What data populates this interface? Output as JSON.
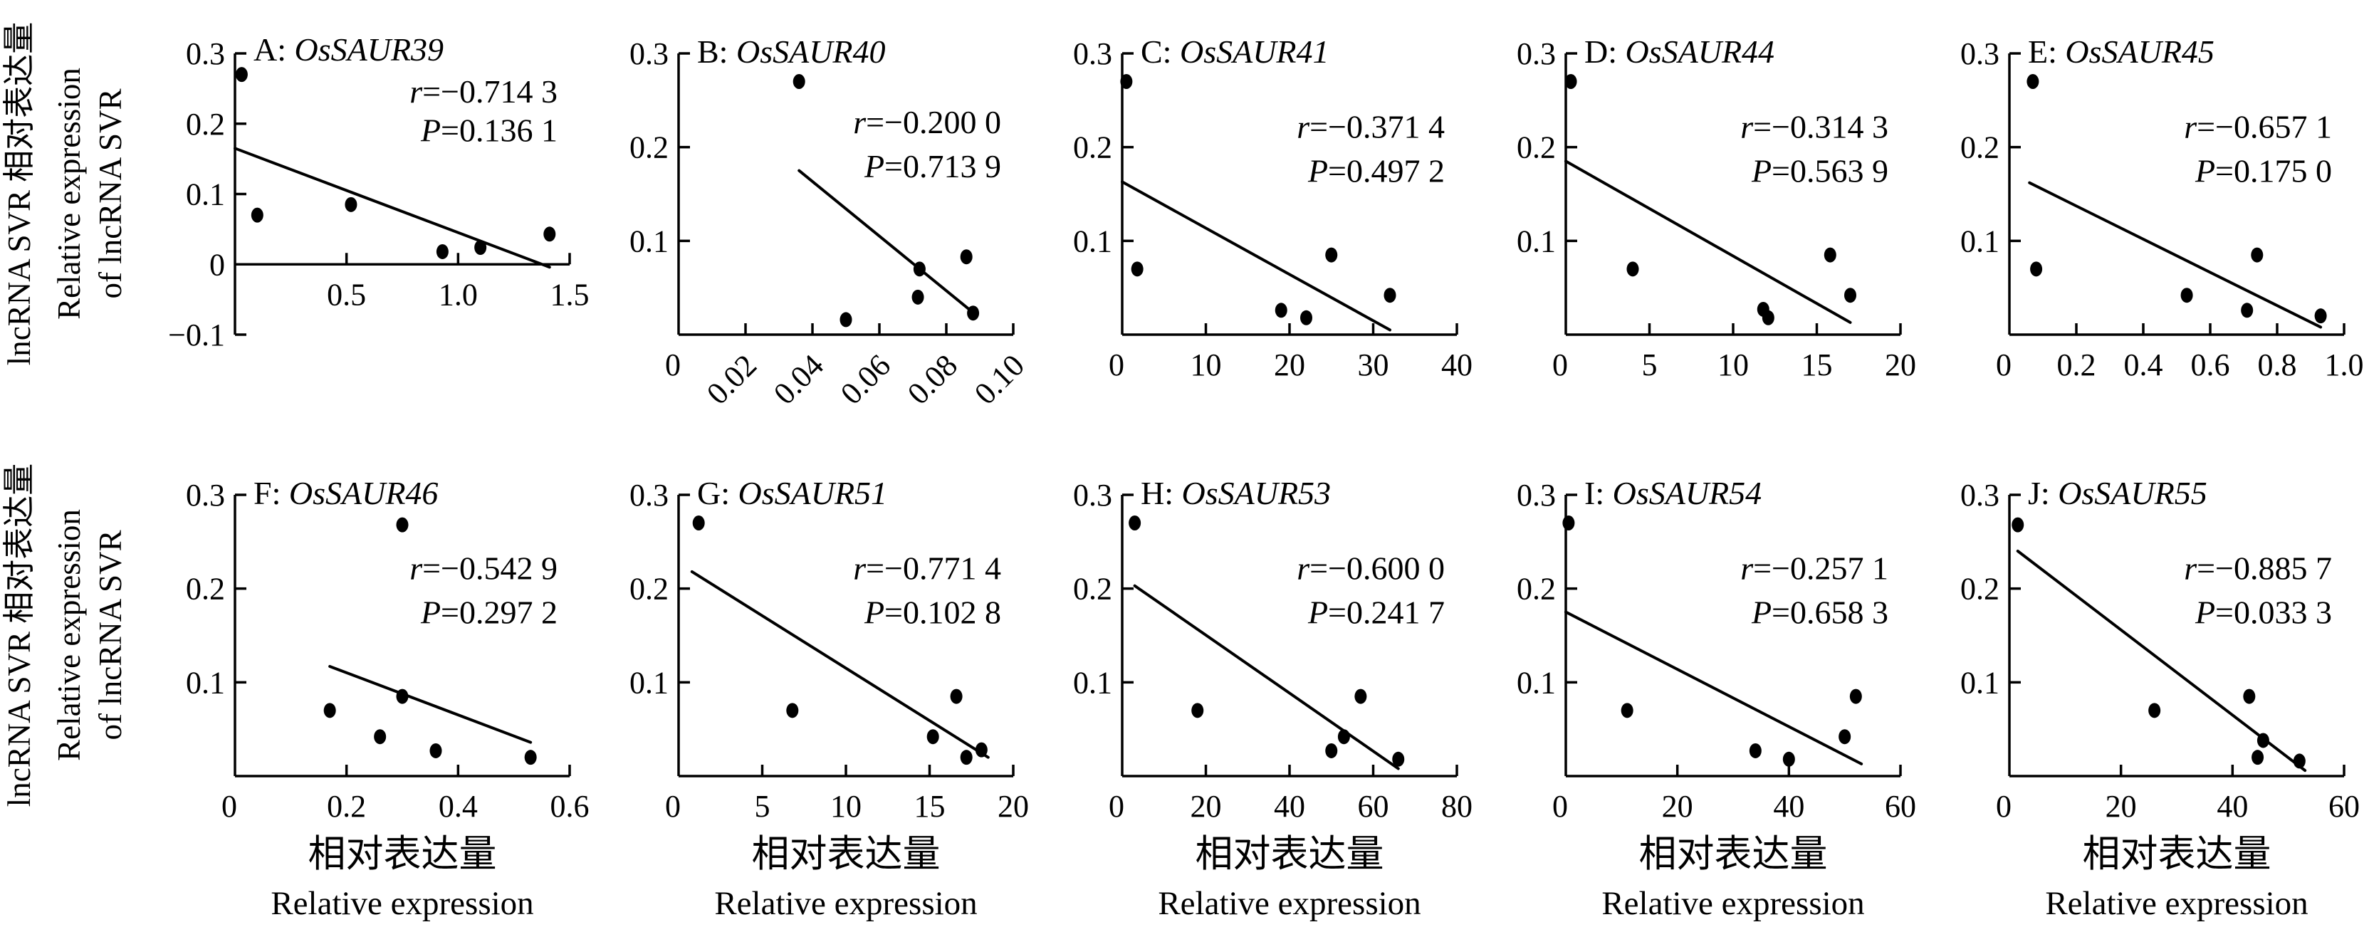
{
  "figure": {
    "ylabel_line1": "lncRNA SVR 相对表达量",
    "ylabel_line2": "Relative expression",
    "ylabel_line3": "of lncRNA SVR",
    "xlabel_cn": "相对表达量",
    "xlabel_en": "Relative expression",
    "text_color": "#000000",
    "background": "#ffffff",
    "marker_color": "#000000"
  },
  "chart_data": [
    {
      "type": "scatter",
      "panel": "A",
      "gene": "OsSAUR39",
      "r_value": "−0.714 3",
      "p_value": "0.136 1",
      "xlim": [
        0,
        1.5
      ],
      "ylim": [
        -0.1,
        0.3
      ],
      "xticks": [
        {
          "v": 0.5,
          "label": "0.5"
        },
        {
          "v": 1.0,
          "label": "1.0"
        },
        {
          "v": 1.5,
          "label": "1.5"
        }
      ],
      "yticks": [
        {
          "v": 0.3,
          "label": "0.3"
        },
        {
          "v": 0.2,
          "label": "0.2"
        },
        {
          "v": 0.1,
          "label": "0.1"
        },
        {
          "v": 0,
          "label": "0"
        },
        {
          "v": -0.1,
          "label": "−0.1"
        }
      ],
      "origin_label": null,
      "rotate_xticks": false,
      "axis_at_zero": true,
      "points": [
        [
          0.03,
          0.27
        ],
        [
          0.1,
          0.07
        ],
        [
          0.52,
          0.085
        ],
        [
          0.93,
          0.018
        ],
        [
          1.1,
          0.024
        ],
        [
          1.41,
          0.043
        ]
      ],
      "regression_line": {
        "x1": 0,
        "y1": 0.165,
        "x2": 1.41,
        "y2": -0.004
      },
      "r_y": 0.23,
      "p_y": 0.175
    },
    {
      "type": "scatter",
      "panel": "B",
      "gene": "OsSAUR40",
      "r_value": "−0.200 0",
      "p_value": "0.713 9",
      "xlim": [
        0,
        0.1
      ],
      "ylim": [
        0,
        0.3
      ],
      "xticks": [
        {
          "v": 0.02,
          "label": "0.02"
        },
        {
          "v": 0.04,
          "label": "0.04"
        },
        {
          "v": 0.06,
          "label": "0.06"
        },
        {
          "v": 0.08,
          "label": "0.08"
        },
        {
          "v": 0.1,
          "label": "0.10"
        }
      ],
      "yticks": [
        {
          "v": 0.3,
          "label": "0.3"
        },
        {
          "v": 0.2,
          "label": "0.2"
        },
        {
          "v": 0.1,
          "label": "0.1"
        }
      ],
      "origin_label": "0",
      "rotate_xticks": true,
      "axis_at_zero": false,
      "points": [
        [
          0.036,
          0.27
        ],
        [
          0.05,
          0.016
        ],
        [
          0.072,
          0.07
        ],
        [
          0.0715,
          0.04
        ],
        [
          0.086,
          0.083
        ],
        [
          0.088,
          0.023
        ]
      ],
      "regression_line": {
        "x1": 0.036,
        "y1": 0.175,
        "x2": 0.0875,
        "y2": 0.025
      },
      "r_y": 0.215,
      "p_y": 0.168
    },
    {
      "type": "scatter",
      "panel": "C",
      "gene": "OsSAUR41",
      "r_value": "−0.371 4",
      "p_value": "0.497 2",
      "xlim": [
        0,
        40
      ],
      "ylim": [
        0,
        0.3
      ],
      "xticks": [
        {
          "v": 10,
          "label": "10"
        },
        {
          "v": 20,
          "label": "20"
        },
        {
          "v": 30,
          "label": "30"
        },
        {
          "v": 40,
          "label": "40"
        }
      ],
      "yticks": [
        {
          "v": 0.3,
          "label": "0.3"
        },
        {
          "v": 0.2,
          "label": "0.2"
        },
        {
          "v": 0.1,
          "label": "0.1"
        }
      ],
      "origin_label": "0",
      "rotate_xticks": false,
      "axis_at_zero": false,
      "points": [
        [
          0.5,
          0.27
        ],
        [
          1.8,
          0.07
        ],
        [
          19,
          0.026
        ],
        [
          22,
          0.018
        ],
        [
          25,
          0.085
        ],
        [
          32,
          0.042
        ]
      ],
      "regression_line": {
        "x1": 0,
        "y1": 0.163,
        "x2": 32,
        "y2": 0.005
      },
      "r_y": 0.21,
      "p_y": 0.163
    },
    {
      "type": "scatter",
      "panel": "D",
      "gene": "OsSAUR44",
      "r_value": "−0.314 3",
      "p_value": "0.563 9",
      "xlim": [
        0,
        20
      ],
      "ylim": [
        0,
        0.3
      ],
      "xticks": [
        {
          "v": 5,
          "label": "5"
        },
        {
          "v": 10,
          "label": "10"
        },
        {
          "v": 15,
          "label": "15"
        },
        {
          "v": 20,
          "label": "20"
        }
      ],
      "yticks": [
        {
          "v": 0.3,
          "label": "0.3"
        },
        {
          "v": 0.2,
          "label": "0.2"
        },
        {
          "v": 0.1,
          "label": "0.1"
        }
      ],
      "origin_label": "0",
      "rotate_xticks": false,
      "axis_at_zero": false,
      "points": [
        [
          0.3,
          0.27
        ],
        [
          4,
          0.07
        ],
        [
          11.8,
          0.027
        ],
        [
          12.1,
          0.018
        ],
        [
          15.8,
          0.085
        ],
        [
          17,
          0.042
        ]
      ],
      "regression_line": {
        "x1": 0,
        "y1": 0.185,
        "x2": 17,
        "y2": 0.013
      },
      "r_y": 0.21,
      "p_y": 0.163
    },
    {
      "type": "scatter",
      "panel": "E",
      "gene": "OsSAUR45",
      "r_value": "−0.657 1",
      "p_value": "0.175 0",
      "xlim": [
        0,
        1.0
      ],
      "ylim": [
        0,
        0.3
      ],
      "xticks": [
        {
          "v": 0.2,
          "label": "0.2"
        },
        {
          "v": 0.4,
          "label": "0.4"
        },
        {
          "v": 0.6,
          "label": "0.6"
        },
        {
          "v": 0.8,
          "label": "0.8"
        },
        {
          "v": 1.0,
          "label": "1.0"
        }
      ],
      "yticks": [
        {
          "v": 0.3,
          "label": "0.3"
        },
        {
          "v": 0.2,
          "label": "0.2"
        },
        {
          "v": 0.1,
          "label": "0.1"
        }
      ],
      "origin_label": "0",
      "rotate_xticks": false,
      "axis_at_zero": false,
      "points": [
        [
          0.07,
          0.27
        ],
        [
          0.08,
          0.07
        ],
        [
          0.53,
          0.042
        ],
        [
          0.71,
          0.026
        ],
        [
          0.74,
          0.085
        ],
        [
          0.93,
          0.02
        ]
      ],
      "regression_line": {
        "x1": 0.06,
        "y1": 0.162,
        "x2": 0.93,
        "y2": 0.008
      },
      "r_y": 0.21,
      "p_y": 0.163
    },
    {
      "type": "scatter",
      "panel": "F",
      "gene": "OsSAUR46",
      "r_value": "−0.542 9",
      "p_value": "0.297 2",
      "xlim": [
        0,
        0.6
      ],
      "ylim": [
        0,
        0.3
      ],
      "xticks": [
        {
          "v": 0.2,
          "label": "0.2"
        },
        {
          "v": 0.4,
          "label": "0.4"
        },
        {
          "v": 0.6,
          "label": "0.6"
        }
      ],
      "yticks": [
        {
          "v": 0.3,
          "label": "0.3"
        },
        {
          "v": 0.2,
          "label": "0.2"
        },
        {
          "v": 0.1,
          "label": "0.1"
        }
      ],
      "origin_label": "0",
      "rotate_xticks": false,
      "axis_at_zero": false,
      "points": [
        [
          0.3,
          0.268
        ],
        [
          0.17,
          0.07
        ],
        [
          0.26,
          0.042
        ],
        [
          0.3,
          0.085
        ],
        [
          0.36,
          0.027
        ],
        [
          0.53,
          0.02
        ]
      ],
      "regression_line": {
        "x1": 0.17,
        "y1": 0.117,
        "x2": 0.53,
        "y2": 0.036
      },
      "r_y": 0.21,
      "p_y": 0.163
    },
    {
      "type": "scatter",
      "panel": "G",
      "gene": "OsSAUR51",
      "r_value": "−0.771 4",
      "p_value": "0.102 8",
      "xlim": [
        0,
        20
      ],
      "ylim": [
        0,
        0.3
      ],
      "xticks": [
        {
          "v": 5,
          "label": "5"
        },
        {
          "v": 10,
          "label": "10"
        },
        {
          "v": 15,
          "label": "15"
        },
        {
          "v": 20,
          "label": "20"
        }
      ],
      "yticks": [
        {
          "v": 0.3,
          "label": "0.3"
        },
        {
          "v": 0.2,
          "label": "0.2"
        },
        {
          "v": 0.1,
          "label": "0.1"
        }
      ],
      "origin_label": "0",
      "rotate_xticks": false,
      "axis_at_zero": false,
      "points": [
        [
          1.2,
          0.27
        ],
        [
          6.8,
          0.07
        ],
        [
          15.2,
          0.042
        ],
        [
          16.6,
          0.085
        ],
        [
          17.2,
          0.02
        ],
        [
          18.1,
          0.028
        ]
      ],
      "regression_line": {
        "x1": 0.8,
        "y1": 0.218,
        "x2": 18.5,
        "y2": 0.02
      },
      "r_y": 0.21,
      "p_y": 0.163
    },
    {
      "type": "scatter",
      "panel": "H",
      "gene": "OsSAUR53",
      "r_value": "−0.600 0",
      "p_value": "0.241 7",
      "xlim": [
        0,
        80
      ],
      "ylim": [
        0,
        0.3
      ],
      "xticks": [
        {
          "v": 20,
          "label": "20"
        },
        {
          "v": 40,
          "label": "40"
        },
        {
          "v": 60,
          "label": "60"
        },
        {
          "v": 80,
          "label": "80"
        }
      ],
      "yticks": [
        {
          "v": 0.3,
          "label": "0.3"
        },
        {
          "v": 0.2,
          "label": "0.2"
        },
        {
          "v": 0.1,
          "label": "0.1"
        }
      ],
      "origin_label": "0",
      "rotate_xticks": false,
      "axis_at_zero": false,
      "points": [
        [
          3,
          0.27
        ],
        [
          18,
          0.07
        ],
        [
          50,
          0.027
        ],
        [
          53,
          0.042
        ],
        [
          57,
          0.085
        ],
        [
          66,
          0.018
        ]
      ],
      "regression_line": {
        "x1": 3,
        "y1": 0.203,
        "x2": 66,
        "y2": 0.008
      },
      "r_y": 0.21,
      "p_y": 0.163
    },
    {
      "type": "scatter",
      "panel": "I",
      "gene": "OsSAUR54",
      "r_value": "−0.257 1",
      "p_value": "0.658 3",
      "xlim": [
        0,
        60
      ],
      "ylim": [
        0,
        0.3
      ],
      "xticks": [
        {
          "v": 20,
          "label": "20"
        },
        {
          "v": 40,
          "label": "40"
        },
        {
          "v": 60,
          "label": "60"
        }
      ],
      "yticks": [
        {
          "v": 0.3,
          "label": "0.3"
        },
        {
          "v": 0.2,
          "label": "0.2"
        },
        {
          "v": 0.1,
          "label": "0.1"
        }
      ],
      "origin_label": "0",
      "rotate_xticks": false,
      "axis_at_zero": false,
      "points": [
        [
          0.5,
          0.27
        ],
        [
          11,
          0.07
        ],
        [
          34,
          0.027
        ],
        [
          40,
          0.018
        ],
        [
          50,
          0.042
        ],
        [
          52,
          0.085
        ]
      ],
      "regression_line": {
        "x1": 0,
        "y1": 0.175,
        "x2": 53,
        "y2": 0.013
      },
      "r_y": 0.21,
      "p_y": 0.163
    },
    {
      "type": "scatter",
      "panel": "J",
      "gene": "OsSAUR55",
      "r_value": "−0.885 7",
      "p_value": "0.033 3",
      "xlim": [
        0,
        60
      ],
      "ylim": [
        0,
        0.3
      ],
      "xticks": [
        {
          "v": 20,
          "label": "20"
        },
        {
          "v": 40,
          "label": "40"
        },
        {
          "v": 60,
          "label": "60"
        }
      ],
      "yticks": [
        {
          "v": 0.3,
          "label": "0.3"
        },
        {
          "v": 0.2,
          "label": "0.2"
        },
        {
          "v": 0.1,
          "label": "0.1"
        }
      ],
      "origin_label": "0",
      "rotate_xticks": false,
      "axis_at_zero": false,
      "points": [
        [
          1.5,
          0.268
        ],
        [
          26,
          0.07
        ],
        [
          43,
          0.085
        ],
        [
          45.5,
          0.038
        ],
        [
          44.5,
          0.02
        ],
        [
          52,
          0.016
        ]
      ],
      "regression_line": {
        "x1": 1.5,
        "y1": 0.24,
        "x2": 53,
        "y2": 0.006
      },
      "r_y": 0.21,
      "p_y": 0.163
    }
  ]
}
